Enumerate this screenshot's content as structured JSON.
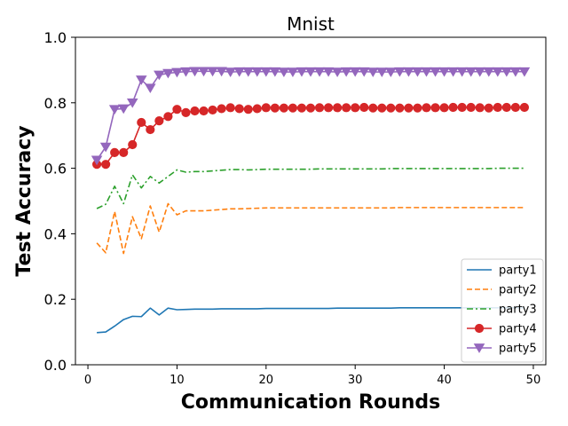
{
  "chart_data": {
    "type": "line",
    "title": "Mnist",
    "xlabel": "Communication Rounds",
    "ylabel": "Test Accuracy",
    "xlim": [
      -1.4,
      51.4
    ],
    "ylim": [
      0.0,
      1.0
    ],
    "xticks": [
      0,
      10,
      20,
      30,
      40,
      50
    ],
    "yticks": [
      0.0,
      0.2,
      0.4,
      0.6,
      0.8,
      1.0
    ],
    "grid": false,
    "legend_position": "lower-right",
    "x": [
      1,
      2,
      3,
      4,
      5,
      6,
      7,
      8,
      9,
      10,
      11,
      12,
      13,
      14,
      15,
      16,
      17,
      18,
      19,
      20,
      21,
      22,
      23,
      24,
      25,
      26,
      27,
      28,
      29,
      30,
      31,
      32,
      33,
      34,
      35,
      36,
      37,
      38,
      39,
      40,
      41,
      42,
      43,
      44,
      45,
      46,
      47,
      48,
      49
    ],
    "series": [
      {
        "name": "party1",
        "color": "#1f77b4",
        "style": "solid",
        "marker": "none",
        "values": [
          0.098,
          0.1,
          0.118,
          0.138,
          0.148,
          0.147,
          0.173,
          0.152,
          0.173,
          0.168,
          0.169,
          0.17,
          0.17,
          0.17,
          0.171,
          0.171,
          0.171,
          0.171,
          0.171,
          0.172,
          0.172,
          0.172,
          0.172,
          0.172,
          0.172,
          0.172,
          0.172,
          0.173,
          0.173,
          0.173,
          0.173,
          0.173,
          0.173,
          0.173,
          0.174,
          0.174,
          0.174,
          0.174,
          0.174,
          0.174,
          0.174,
          0.174,
          0.174,
          0.174,
          0.174,
          0.174,
          0.174,
          0.174,
          0.174
        ]
      },
      {
        "name": "party2",
        "color": "#ff7f0e",
        "style": "dashed",
        "marker": "none",
        "values": [
          0.372,
          0.342,
          0.468,
          0.34,
          0.452,
          0.385,
          0.485,
          0.405,
          0.492,
          0.458,
          0.47,
          0.47,
          0.47,
          0.472,
          0.474,
          0.476,
          0.476,
          0.477,
          0.478,
          0.479,
          0.479,
          0.479,
          0.479,
          0.479,
          0.479,
          0.479,
          0.479,
          0.479,
          0.479,
          0.479,
          0.479,
          0.479,
          0.479,
          0.479,
          0.48,
          0.48,
          0.48,
          0.48,
          0.48,
          0.48,
          0.48,
          0.48,
          0.48,
          0.48,
          0.48,
          0.48,
          0.48,
          0.48,
          0.48
        ]
      },
      {
        "name": "party3",
        "color": "#2ca02c",
        "style": "dashdot",
        "marker": "none",
        "values": [
          0.477,
          0.49,
          0.545,
          0.492,
          0.58,
          0.54,
          0.575,
          0.555,
          0.575,
          0.595,
          0.588,
          0.59,
          0.59,
          0.592,
          0.594,
          0.596,
          0.596,
          0.595,
          0.596,
          0.597,
          0.597,
          0.597,
          0.597,
          0.597,
          0.597,
          0.598,
          0.598,
          0.598,
          0.598,
          0.598,
          0.598,
          0.598,
          0.598,
          0.599,
          0.599,
          0.599,
          0.599,
          0.599,
          0.599,
          0.599,
          0.599,
          0.599,
          0.599,
          0.599,
          0.599,
          0.6,
          0.6,
          0.6,
          0.6
        ]
      },
      {
        "name": "party4",
        "color": "#d62728",
        "style": "solid",
        "marker": "circle",
        "values": [
          0.612,
          0.612,
          0.648,
          0.648,
          0.672,
          0.74,
          0.718,
          0.745,
          0.758,
          0.78,
          0.77,
          0.775,
          0.775,
          0.778,
          0.782,
          0.785,
          0.782,
          0.78,
          0.782,
          0.785,
          0.784,
          0.784,
          0.784,
          0.784,
          0.784,
          0.785,
          0.785,
          0.785,
          0.785,
          0.785,
          0.786,
          0.784,
          0.784,
          0.784,
          0.784,
          0.784,
          0.784,
          0.785,
          0.785,
          0.785,
          0.786,
          0.786,
          0.786,
          0.785,
          0.784,
          0.786,
          0.786,
          0.786,
          0.786
        ]
      },
      {
        "name": "party5",
        "color": "#9467bd",
        "style": "solid",
        "marker": "triangle-down",
        "values": [
          0.625,
          0.665,
          0.78,
          0.782,
          0.8,
          0.87,
          0.845,
          0.885,
          0.89,
          0.893,
          0.895,
          0.896,
          0.896,
          0.896,
          0.896,
          0.894,
          0.895,
          0.895,
          0.895,
          0.895,
          0.895,
          0.894,
          0.894,
          0.895,
          0.895,
          0.895,
          0.895,
          0.894,
          0.895,
          0.895,
          0.895,
          0.894,
          0.894,
          0.894,
          0.895,
          0.895,
          0.895,
          0.895,
          0.895,
          0.895,
          0.895,
          0.895,
          0.895,
          0.895,
          0.895,
          0.895,
          0.895,
          0.895,
          0.895
        ]
      }
    ]
  }
}
